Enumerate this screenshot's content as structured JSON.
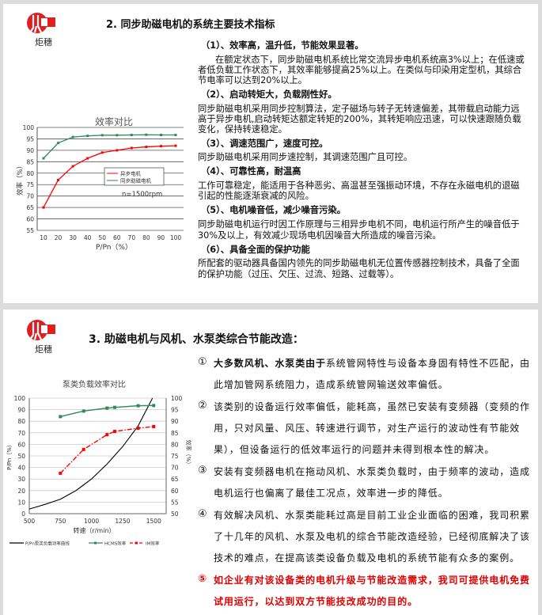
{
  "logo_text": "炬穗",
  "slide1": {
    "title": "2. 同步助磁电机的系统主要技术指标",
    "lines": [
      {
        "text": "（1）、效率高，温升低，节能效果显著。",
        "bold": true
      },
      {
        "text": "在额定状态下，同步助磁电机系统比常交流异步电机系统高3%以上；在低速或",
        "bold": false
      },
      {
        "text": "者低负载工作状态下，其效率能够提高25%以上。在类似与印染用定型机，其综合",
        "bold": false
      },
      {
        "text": "节电率可以达到20%以上。",
        "bold": false
      },
      {
        "text": "（2）、启动转矩大，负载刚性好。",
        "bold": true
      },
      {
        "text": "同步助磁电机采用同步控制算法，定子磁场与转子无转速偏差，其带载启动能力远",
        "bold": false
      },
      {
        "text": "高于异步电机,启动转矩达额定转矩的200%，其转矩响应迅速，可以快速跟随负载",
        "bold": false
      },
      {
        "text": "变化，保持转速稳定。",
        "bold": false
      },
      {
        "text": "（3）、调速范围广，速度可控。",
        "bold": true
      },
      {
        "text": "同步助磁电机采用同步速控制，其调速范围广且可控。",
        "bold": false
      },
      {
        "text": "（4）、可靠性高，耐温高",
        "bold": true
      },
      {
        "text": "工作可靠稳定，能适用于各种恶劣、高温甚至强振动环境，不存在永磁电机的退磁",
        "bold": false
      },
      {
        "text": "引起的性能逐渐衰减的风险。",
        "bold": false
      },
      {
        "text": "（5）、电机噪音低，减少噪音污染。",
        "bold": true
      },
      {
        "text": "同步助磁电机运行时因工作原理与三相异步电机不同，电机运行所产生的噪音低于",
        "bold": false
      },
      {
        "text": "30%及以上，有效减少现场电机因噪音大所造成的噪音污染。",
        "bold": false
      },
      {
        "text": "（6）、具备全面的保护功能",
        "bold": true
      },
      {
        "text": "所配套的驱动器具备国内领先的同步助磁电机无位置传感器控制技术，具备了全面",
        "bold": false
      },
      {
        "text": "的保护功能（过压、欠压、过流、短路、过载等）。",
        "bold": false
      }
    ]
  },
  "slide2": {
    "title": "3. 助磁电机与风机、水泵类综合节能改造：",
    "items": [
      {
        "marker": "①",
        "bold_lead": "大多数风机、水泵类由于",
        "lines": [
          "系统管网特性与设备本身固有特性不匹配，由",
          "此增加管网系统阻力，造成系统管网输送效率偏低。"
        ],
        "red": false
      },
      {
        "marker": "②",
        "bold_lead": "",
        "lines": [
          "该类别的设备运行效率偏低，能耗高，虽然已安装有变频器（变频的作",
          "用，只对风量、风压、转速进行调节，对生产运行的波动性有节能效",
          "果），但设备运行的低效率运行的问题并未得到根本性的解决。"
        ],
        "red": false
      },
      {
        "marker": "③",
        "bold_lead": "",
        "lines": [
          "安装有变频器电机在拖动风机、水泵类负载时，由于频率的波动，造成",
          "电机运行也偏离了最佳工况点，效率进一步的降低。"
        ],
        "red": false
      },
      {
        "marker": "④",
        "bold_lead": "",
        "lines": [
          "有效解决风机、水泵类能耗过高是目前工业企业面临的困难，我司积累",
          "了十几年的风机、水泵及电机的综合节能改造经验，已经彻底解决了该",
          "技术的难点，在提高该类设备负载及电机的系统节能有众多的案例。"
        ],
        "red": false
      },
      {
        "marker": "⑤",
        "bold_lead": "",
        "lines": [
          "如企业有对该设备类的电机升级与节能改造需求，我司可提供电机免费",
          "试用运行，以达到双方节能技改成功的目的。"
        ],
        "red": true
      }
    ]
  },
  "colors": {
    "red": "#ff0000",
    "green": "#2e8b57",
    "accent_red": "#e00000",
    "black": "#000000"
  },
  "chart_data": [
    {
      "type": "line",
      "title": "效率对比",
      "xlabel": "P/Pn（%）",
      "ylabel": "效率（%）",
      "annotation": "n=1500rpm",
      "x": [
        10,
        20,
        30,
        40,
        50,
        60,
        70,
        80,
        90,
        100
      ],
      "ylim": [
        55,
        100
      ],
      "yticks": [
        55,
        60,
        65,
        70,
        75,
        80,
        85,
        90,
        95,
        100
      ],
      "grid": true,
      "legend_position": "center-right",
      "series": [
        {
          "name": "异步电机",
          "color": "#ff0000",
          "values": [
            65,
            77,
            83,
            86.5,
            89,
            90,
            91,
            91.5,
            91.8,
            92
          ]
        },
        {
          "name": "同步助磁电机",
          "color": "#2e8b57",
          "values": [
            86.5,
            93.2,
            95.8,
            96.3,
            96.6,
            96.6,
            96.7,
            96.8,
            96.7,
            96.7
          ]
        }
      ]
    },
    {
      "type": "line",
      "title": "泵类负载效率对比",
      "xlabel": "转速（r/min）",
      "ylabel_left": "P/Pn（%）",
      "ylabel_right": "效率（%）",
      "xlim": [
        500,
        1600
      ],
      "xticks": [
        500,
        750,
        1000,
        1250,
        1500
      ],
      "ylim_left": [
        0,
        100
      ],
      "yticks_left": [
        0,
        10,
        20,
        30,
        40,
        50,
        60,
        70,
        80,
        90,
        100
      ],
      "ylim_right": [
        50,
        100
      ],
      "yticks_right": [
        50,
        55,
        60,
        65,
        70,
        75,
        80,
        85,
        90,
        95,
        100
      ],
      "grid": true,
      "legend_position": "bottom",
      "series": [
        {
          "name": "P/Pn泵类负载功率曲线",
          "axis": "left",
          "color": "#000000",
          "x": [
            500,
            625,
            750,
            875,
            1000,
            1125,
            1250,
            1375,
            1490
          ],
          "values": [
            4,
            8,
            12.5,
            20,
            30,
            43,
            58,
            76,
            100
          ]
        },
        {
          "name": "HCMS效率",
          "axis": "right",
          "color": "#2e8b57",
          "x": [
            750,
            937,
            1125,
            1187,
            1375,
            1500
          ],
          "values": [
            92,
            94.4,
            95.7,
            96,
            96.7,
            96.8
          ]
        },
        {
          "name": "IM效率",
          "axis": "right",
          "color": "#ff0000",
          "dashed": true,
          "x": [
            750,
            937,
            1125,
            1187,
            1375,
            1500
          ],
          "values": [
            67.5,
            77.8,
            84.2,
            85.6,
            87,
            87.7
          ]
        }
      ]
    }
  ]
}
